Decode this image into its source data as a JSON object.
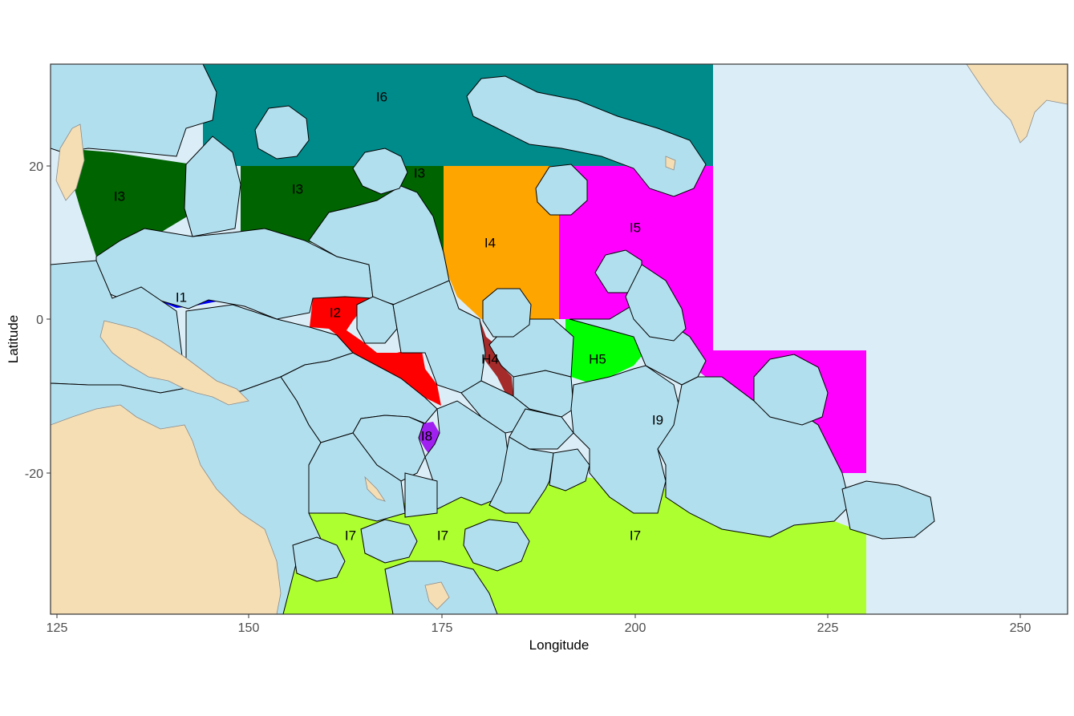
{
  "map": {
    "x_label": "Longitude",
    "y_label": "Latitude",
    "x_ticks": [
      "125",
      "150",
      "175",
      "200",
      "225",
      "250"
    ],
    "y_ticks": [
      "20",
      "0",
      "-20"
    ],
    "colors": {
      "ocean": "#dbeef8",
      "eez": "#b2dfee",
      "land": "#f5deb3",
      "I1": "#0000ff",
      "I2": "#ff0000",
      "I3": "#006400",
      "I4": "#ffa500",
      "I5": "#ff00ff",
      "I6": "#008b8b",
      "I7": "#adff2f",
      "I8": "#a020f0",
      "I9": "#ffff00",
      "H4": "#a52a2a",
      "H5": "#00ff00"
    },
    "labels": {
      "I1": "I1",
      "I2": "I2",
      "I3": "I3",
      "I4": "I4",
      "I5": "I5",
      "I6": "I6",
      "I7": "I7",
      "I8": "I8",
      "I9": "I9",
      "H4": "H4",
      "H5": "H5"
    }
  }
}
